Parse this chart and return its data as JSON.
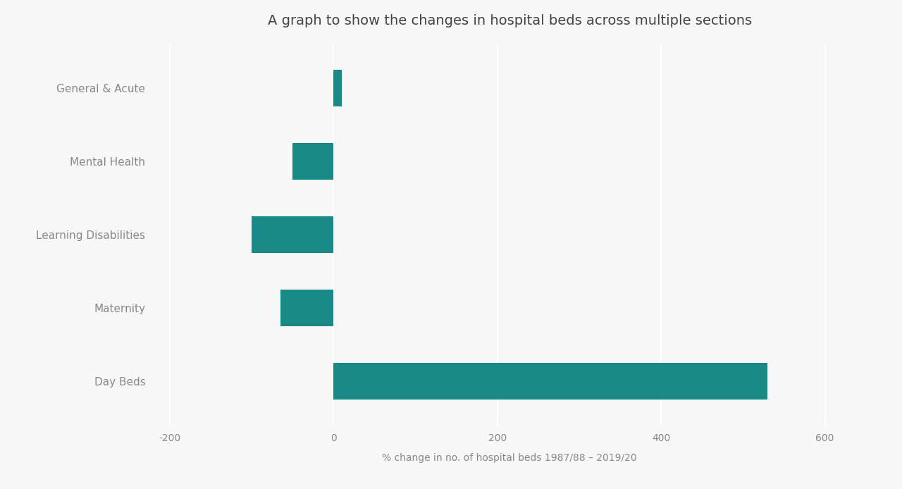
{
  "title": "A graph to show the changes in hospital beds across multiple sections",
  "categories": [
    "General & Acute",
    "Mental Health",
    "Learning Disabilities",
    "Maternity",
    "Day Beds"
  ],
  "values": [
    10,
    -50,
    -100,
    -65,
    530
  ],
  "bar_color": "#1a8a87",
  "xlabel": "% change in no. of hospital beds 1987/88 – 2019/20",
  "xlim": [
    -220,
    650
  ],
  "xticks": [
    -200,
    0,
    200,
    400,
    600
  ],
  "background_color": "#f7f7f7",
  "title_fontsize": 14,
  "label_fontsize": 11,
  "tick_fontsize": 10,
  "bar_height": 0.5
}
